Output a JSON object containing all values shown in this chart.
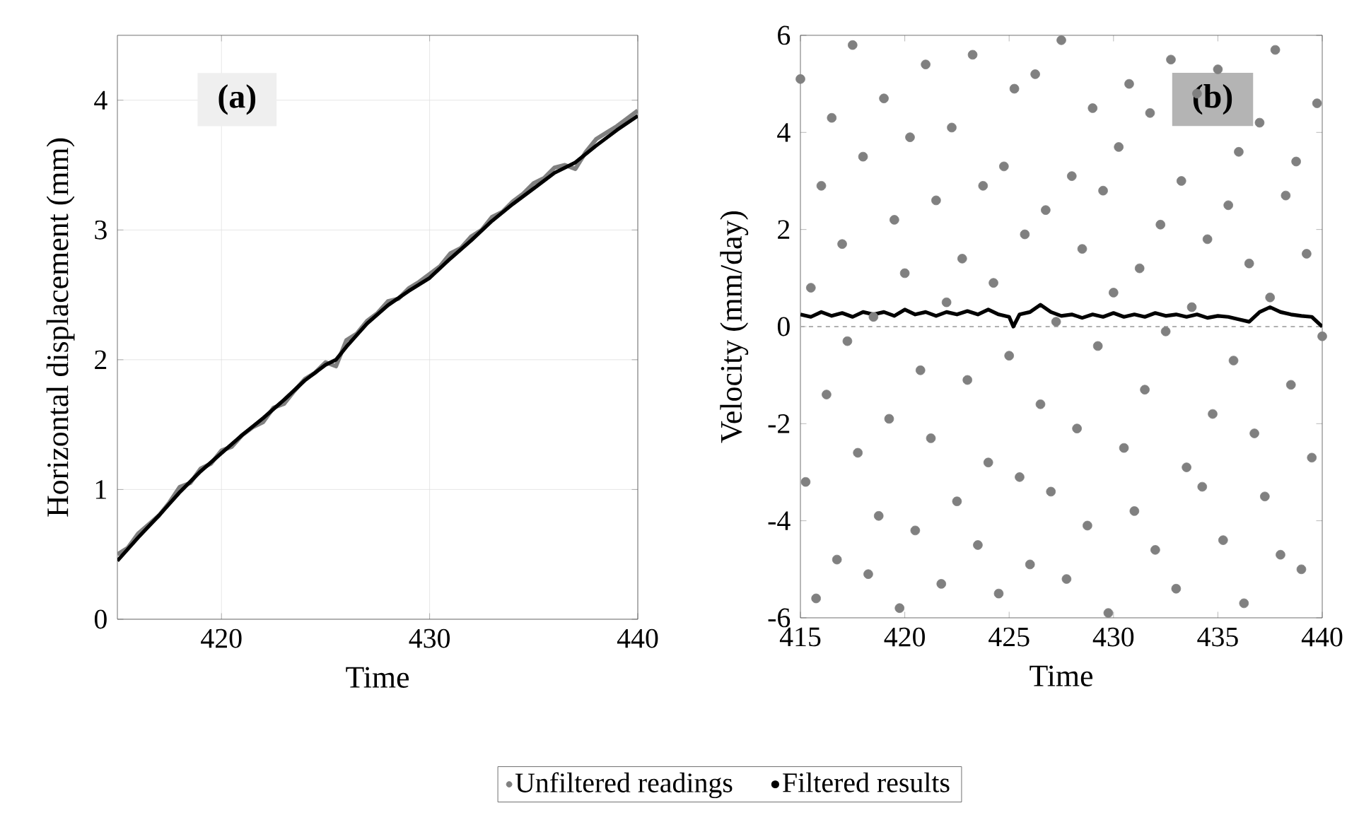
{
  "chart_data": [
    {
      "type": "line",
      "xlabel": "Time",
      "ylabel": "Horizontal displacement (mm)",
      "annotations": [
        "(a)"
      ],
      "xlim": [
        415,
        440
      ],
      "xticks": [
        420,
        430,
        440
      ],
      "ylim": [
        0,
        4.5
      ],
      "yticks": [
        0,
        1,
        2,
        3,
        4
      ],
      "grid": true,
      "series": [
        {
          "color": "#808080",
          "x": [
            415,
            415.5,
            416,
            416.5,
            417,
            417.5,
            418,
            418.5,
            419,
            419.5,
            420,
            420.5,
            421,
            421.5,
            422,
            422.5,
            423,
            423.5,
            424,
            424.5,
            425,
            425.5,
            426,
            426.5,
            427,
            427.5,
            428,
            428.5,
            429,
            429.5,
            430,
            430.5,
            431,
            431.5,
            432,
            432.5,
            433,
            433.5,
            434,
            434.5,
            435,
            435.5,
            436,
            436.5,
            437,
            437.5,
            438,
            438.5,
            439,
            439.5,
            440
          ],
          "values": [
            0.5,
            0.55,
            0.66,
            0.73,
            0.8,
            0.9,
            1.02,
            1.05,
            1.16,
            1.2,
            1.3,
            1.33,
            1.42,
            1.48,
            1.52,
            1.63,
            1.66,
            1.76,
            1.85,
            1.9,
            1.98,
            1.95,
            2.15,
            2.2,
            2.3,
            2.36,
            2.45,
            2.47,
            2.55,
            2.6,
            2.66,
            2.72,
            2.82,
            2.86,
            2.95,
            3.0,
            3.1,
            3.14,
            3.22,
            3.28,
            3.36,
            3.4,
            3.48,
            3.5,
            3.47,
            3.6,
            3.7,
            3.75,
            3.8,
            3.86,
            3.92
          ]
        },
        {
          "color": "#000000",
          "x": [
            415,
            416,
            417,
            418,
            419,
            420,
            421,
            422,
            423,
            424,
            425,
            425.5,
            426,
            427,
            428,
            429,
            430,
            431,
            432,
            433,
            434,
            435,
            436,
            437,
            438,
            439,
            440
          ],
          "values": [
            0.45,
            0.63,
            0.8,
            0.98,
            1.14,
            1.28,
            1.42,
            1.55,
            1.69,
            1.84,
            1.96,
            2.0,
            2.1,
            2.28,
            2.42,
            2.53,
            2.63,
            2.78,
            2.92,
            3.07,
            3.2,
            3.32,
            3.44,
            3.52,
            3.65,
            3.77,
            3.88
          ]
        }
      ]
    },
    {
      "type": "line",
      "xlabel": "Time",
      "ylabel": "Velocity (mm/day)",
      "annotations": [
        "(b)"
      ],
      "xlim": [
        415,
        440
      ],
      "xticks": [
        415,
        420,
        425,
        430,
        435,
        440
      ],
      "ylim": [
        -6,
        6
      ],
      "yticks": [
        -6,
        -4,
        -2,
        0,
        2,
        4,
        6
      ],
      "legend": "bottom",
      "ref_lines": [
        {
          "axis": "y",
          "value": 0,
          "color": "#b0b0b0",
          "line_style": "dashed"
        }
      ],
      "series": [
        {
          "name": "Unfiltered readings",
          "type": "scatter",
          "marker": "circle",
          "color": "#808080",
          "x": [
            415,
            415.25,
            415.5,
            415.75,
            416,
            416.25,
            416.5,
            416.75,
            417,
            417.25,
            417.5,
            417.75,
            418,
            418.25,
            418.5,
            418.75,
            419,
            419.25,
            419.5,
            419.75,
            420,
            420.25,
            420.5,
            420.75,
            421,
            421.25,
            421.5,
            421.75,
            422,
            422.25,
            422.5,
            422.75,
            423,
            423.25,
            423.5,
            423.75,
            424,
            424.25,
            424.5,
            424.75,
            425,
            425.25,
            425.5,
            425.75,
            426,
            426.25,
            426.5,
            426.75,
            427,
            427.25,
            427.5,
            427.75,
            428,
            428.25,
            428.5,
            428.75,
            429,
            429.25,
            429.5,
            429.75,
            430,
            430.25,
            430.5,
            430.75,
            431,
            431.25,
            431.5,
            431.75,
            432,
            432.25,
            432.5,
            432.75,
            433,
            433.25,
            433.5,
            433.75,
            434,
            434.25,
            434.5,
            434.75,
            435,
            435.25,
            435.5,
            435.75,
            436,
            436.25,
            436.5,
            436.75,
            437,
            437.25,
            437.5,
            437.75,
            438,
            438.25,
            438.5,
            438.75,
            439,
            439.25,
            439.5,
            439.75,
            440
          ],
          "values": [
            5.1,
            -3.2,
            0.8,
            -5.6,
            2.9,
            -1.4,
            4.3,
            -4.8,
            1.7,
            -0.3,
            5.8,
            -2.6,
            3.5,
            -5.1,
            0.2,
            -3.9,
            4.7,
            -1.9,
            2.2,
            -5.8,
            1.1,
            3.9,
            -4.2,
            -0.9,
            5.4,
            -2.3,
            2.6,
            -5.3,
            0.5,
            4.1,
            -3.6,
            1.4,
            -1.1,
            5.6,
            -4.5,
            2.9,
            -2.8,
            0.9,
            -5.5,
            3.3,
            -0.6,
            4.9,
            -3.1,
            1.9,
            -4.9,
            5.2,
            -1.6,
            2.4,
            -3.4,
            0.1,
            5.9,
            -5.2,
            3.1,
            -2.1,
            1.6,
            -4.1,
            4.5,
            -0.4,
            2.8,
            -5.9,
            0.7,
            3.7,
            -2.5,
            5.0,
            -3.8,
            1.2,
            -1.3,
            4.4,
            -4.6,
            2.1,
            -0.1,
            5.5,
            -5.4,
            3.0,
            -2.9,
            0.4,
            4.8,
            -3.3,
            1.8,
            -1.8,
            5.3,
            -4.4,
            2.5,
            -0.7,
            3.6,
            -5.7,
            1.3,
            -2.2,
            4.2,
            -3.5,
            0.6,
            5.7,
            -4.7,
            2.7,
            -1.2,
            3.4,
            -5.0,
            1.5,
            -2.7,
            4.6,
            -0.2
          ]
        },
        {
          "name": "Filtered results",
          "color": "#000000",
          "x": [
            415,
            415.5,
            416,
            416.5,
            417,
            417.5,
            418,
            418.5,
            419,
            419.5,
            420,
            420.5,
            421,
            421.5,
            422,
            422.5,
            423,
            423.5,
            424,
            424.5,
            425,
            425.2,
            425.5,
            426,
            426.5,
            427,
            427.5,
            428,
            428.5,
            429,
            429.5,
            430,
            430.5,
            431,
            431.5,
            432,
            432.5,
            433,
            433.5,
            434,
            434.5,
            435,
            435.5,
            436,
            436.5,
            437,
            437.5,
            438,
            438.5,
            439,
            439.5,
            440
          ],
          "values": [
            0.25,
            0.2,
            0.3,
            0.22,
            0.28,
            0.2,
            0.3,
            0.25,
            0.3,
            0.22,
            0.35,
            0.25,
            0.3,
            0.22,
            0.3,
            0.25,
            0.32,
            0.25,
            0.35,
            0.25,
            0.2,
            0.0,
            0.25,
            0.3,
            0.45,
            0.3,
            0.22,
            0.25,
            0.18,
            0.25,
            0.2,
            0.28,
            0.2,
            0.25,
            0.2,
            0.28,
            0.22,
            0.25,
            0.2,
            0.25,
            0.18,
            0.22,
            0.2,
            0.15,
            0.1,
            0.3,
            0.4,
            0.3,
            0.25,
            0.22,
            0.2,
            0.0
          ]
        }
      ]
    }
  ]
}
